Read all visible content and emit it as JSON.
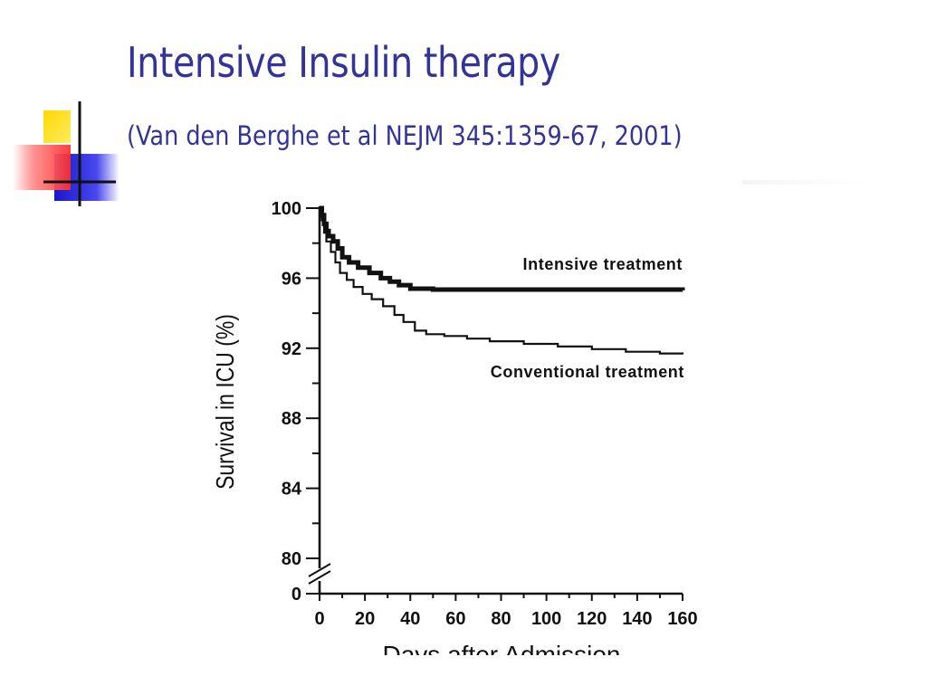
{
  "slide": {
    "title": "Intensive Insulin therapy",
    "subtitle": "(Van den Berghe et al NEJM 345:1359-67, 2001)"
  },
  "colors": {
    "title": "#333399",
    "deco_yellow": "#ffdd00",
    "deco_red": "#ff4a4a",
    "deco_blue": "#2a2ad8",
    "curve": "#111111"
  },
  "chart_data": {
    "type": "line",
    "title": "",
    "xlabel": "Days after Admission",
    "ylabel": "Survival in ICU (%)",
    "xlim": [
      0,
      160
    ],
    "ylim": [
      80,
      100
    ],
    "y_break": true,
    "x_ticks": [
      "0",
      "20",
      "40",
      "60",
      "80",
      "100",
      "120",
      "140",
      "160"
    ],
    "y_ticks": [
      "100",
      "96",
      "92",
      "88",
      "84",
      "80",
      "0"
    ],
    "series": [
      {
        "name": "Intensive treatment",
        "step": true,
        "points": [
          [
            0,
            100
          ],
          [
            1,
            99.6
          ],
          [
            2,
            99.1
          ],
          [
            3,
            98.7
          ],
          [
            4,
            98.4
          ],
          [
            6,
            98.1
          ],
          [
            8,
            97.7
          ],
          [
            10,
            97.2
          ],
          [
            13,
            96.9
          ],
          [
            17,
            96.6
          ],
          [
            22,
            96.3
          ],
          [
            27,
            96.0
          ],
          [
            31,
            95.8
          ],
          [
            35,
            95.6
          ],
          [
            40,
            95.4
          ],
          [
            50,
            95.35
          ],
          [
            80,
            95.35
          ],
          [
            120,
            95.35
          ],
          [
            160,
            95.3
          ]
        ]
      },
      {
        "name": "Conventional treatment",
        "step": true,
        "points": [
          [
            0,
            100
          ],
          [
            1,
            99.3
          ],
          [
            2,
            98.6
          ],
          [
            3,
            98.1
          ],
          [
            5,
            97.5
          ],
          [
            7,
            96.9
          ],
          [
            9,
            96.3
          ],
          [
            12,
            95.9
          ],
          [
            15,
            95.5
          ],
          [
            19,
            95.1
          ],
          [
            23,
            94.8
          ],
          [
            28,
            94.4
          ],
          [
            33,
            93.9
          ],
          [
            37,
            93.5
          ],
          [
            42,
            93.0
          ],
          [
            47,
            92.8
          ],
          [
            55,
            92.7
          ],
          [
            65,
            92.55
          ],
          [
            75,
            92.4
          ],
          [
            90,
            92.25
          ],
          [
            105,
            92.1
          ],
          [
            120,
            91.95
          ],
          [
            135,
            91.8
          ],
          [
            150,
            91.7
          ],
          [
            160,
            91.65
          ]
        ]
      }
    ]
  }
}
